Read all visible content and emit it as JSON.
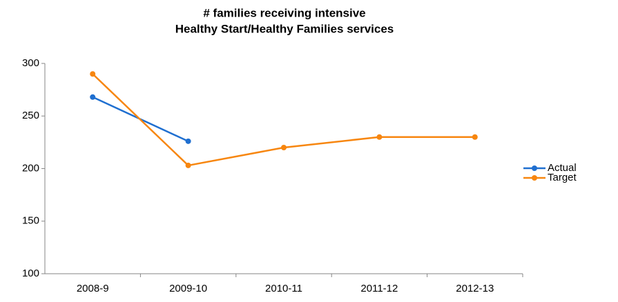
{
  "chart_data": {
    "type": "line",
    "title": [
      "# families receiving intensive",
      "Healthy Start/Healthy Families services"
    ],
    "categories": [
      "2008-9",
      "2009-10",
      "2010-11",
      "2011-12",
      "2012-13"
    ],
    "series": [
      {
        "name": "Actual",
        "color": "#1f6fd0",
        "values": [
          268,
          226,
          null,
          null,
          null
        ]
      },
      {
        "name": "Target",
        "color": "#f7860f",
        "values": [
          290,
          203,
          220,
          230,
          230
        ]
      }
    ],
    "ylim": [
      100,
      300
    ],
    "yticks": [
      100,
      150,
      200,
      250,
      300
    ],
    "grid": false,
    "legend": "right"
  }
}
